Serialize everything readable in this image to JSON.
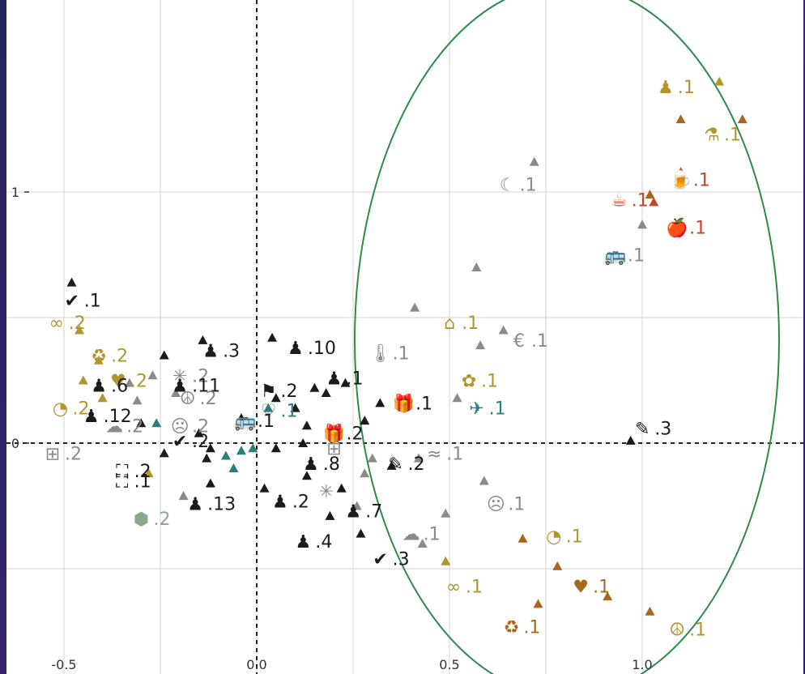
{
  "colors": {
    "black": "#1b1b1b",
    "grey": "#8a8a8a",
    "olive": "#b0962c",
    "brown": "#a8681a",
    "rust": "#c0472c",
    "teal": "#2e7d7a",
    "sage": "#8aa88a",
    "ellipse": "#2f8a4c"
  },
  "chart_data": {
    "type": "scatter",
    "xlim": [
      -0.6,
      1.15
    ],
    "ylim": [
      -0.92,
      1.48
    ],
    "x_ticks": [
      {
        "v": -0.5,
        "label": "-0.5"
      },
      {
        "v": 0.0,
        "label": "0.0"
      },
      {
        "v": 0.5,
        "label": "0.5"
      },
      {
        "v": 1.0,
        "label": "1.0"
      }
    ],
    "y_ticks": [
      {
        "v": 0,
        "label": "0"
      },
      {
        "v": 1,
        "label": "1"
      }
    ],
    "grid": true,
    "reference_lines": {
      "x": 0,
      "y": 0
    },
    "labels": [
      {
        "icon": "chess-pawn-icon",
        "glyph": "♟",
        "text": ".1",
        "x": 1.09,
        "y": 1.42,
        "color": "olive"
      },
      {
        "icon": "flask-icon",
        "glyph": "⚗",
        "text": ".1",
        "x": 1.21,
        "y": 1.23,
        "color": "olive"
      },
      {
        "icon": "beer-icon",
        "glyph": "🍺",
        "text": ".1",
        "x": 1.13,
        "y": 1.05,
        "color": "rust"
      },
      {
        "icon": "cup-icon",
        "glyph": "☕",
        "text": ".1",
        "x": 0.97,
        "y": 0.97,
        "color": "rust"
      },
      {
        "icon": "apple-icon",
        "glyph": "🍎",
        "text": ".1",
        "x": 1.12,
        "y": 0.86,
        "color": "rust"
      },
      {
        "icon": "bus-icon",
        "glyph": "🚌",
        "text": ".1",
        "x": 0.96,
        "y": 0.75,
        "color": "grey"
      },
      {
        "icon": "moon-icon",
        "glyph": "☾",
        "text": ".1",
        "x": 0.68,
        "y": 1.03,
        "color": "grey"
      },
      {
        "icon": "check-icon",
        "glyph": "✔",
        "text": ".1",
        "x": -0.45,
        "y": 0.57,
        "color": "black"
      },
      {
        "icon": "chain-icon",
        "glyph": "∞",
        "text": ".2",
        "x": -0.49,
        "y": 0.48,
        "color": "olive"
      },
      {
        "icon": "house-icon",
        "glyph": "⌂",
        "text": ".1",
        "x": 0.53,
        "y": 0.48,
        "color": "olive"
      },
      {
        "icon": "euro-icon",
        "glyph": "€",
        "text": ".1",
        "x": 0.71,
        "y": 0.41,
        "color": "grey"
      },
      {
        "icon": "recycle-icon",
        "glyph": "♻",
        "text": ".2",
        "x": -0.38,
        "y": 0.35,
        "color": "olive"
      },
      {
        "icon": "chess-pawn-icon",
        "glyph": "♟",
        "text": ".3",
        "x": -0.09,
        "y": 0.37,
        "color": "black"
      },
      {
        "icon": "chess-pawn-icon",
        "glyph": "♟",
        "text": ".10",
        "x": 0.13,
        "y": 0.38,
        "color": "black"
      },
      {
        "icon": "thermometer-icon",
        "glyph": "🌡",
        "text": ".1",
        "x": 0.35,
        "y": 0.36,
        "color": "grey"
      },
      {
        "icon": "chess-pawn-icon",
        "glyph": "♟",
        "text": ".1",
        "x": 0.23,
        "y": 0.26,
        "color": "black"
      },
      {
        "icon": "sunflower-icon",
        "glyph": "✿",
        "text": ".1",
        "x": 0.58,
        "y": 0.25,
        "color": "olive"
      },
      {
        "icon": "heart-icon",
        "glyph": "♥",
        "text": ".2",
        "x": -0.33,
        "y": 0.25,
        "color": "olive"
      },
      {
        "icon": "sparkle-icon",
        "glyph": "✳",
        "text": ".2",
        "x": -0.17,
        "y": 0.27,
        "color": "grey"
      },
      {
        "icon": "chess-pawn-icon",
        "glyph": "♟",
        "text": ".6",
        "x": -0.38,
        "y": 0.23,
        "color": "black"
      },
      {
        "icon": "chess-pawn-icon",
        "glyph": "♟",
        "text": ".11",
        "x": -0.17,
        "y": 0.23,
        "color": "black"
      },
      {
        "icon": "flag-icon",
        "glyph": "⚑",
        "text": ".2",
        "x": 0.06,
        "y": 0.21,
        "color": "black"
      },
      {
        "icon": "peace-icon",
        "glyph": "☮",
        "text": ".2",
        "x": -0.15,
        "y": 0.18,
        "color": "grey"
      },
      {
        "icon": "pie-icon",
        "glyph": "◔",
        "text": ".2",
        "x": -0.48,
        "y": 0.14,
        "color": "olive"
      },
      {
        "icon": "chess-pawn-icon",
        "glyph": "♟",
        "text": ".12",
        "x": -0.4,
        "y": 0.11,
        "color": "black"
      },
      {
        "icon": "gift-icon",
        "glyph": "🎁",
        "text": ".1",
        "x": 0.41,
        "y": 0.16,
        "color": "black"
      },
      {
        "icon": "plane-icon",
        "glyph": "✈",
        "text": ".1",
        "x": 0.6,
        "y": 0.14,
        "color": "teal"
      },
      {
        "icon": "heart-outline-icon",
        "glyph": "♡",
        "text": ".1",
        "x": 0.06,
        "y": 0.13,
        "color": "teal"
      },
      {
        "icon": "bus-icon",
        "glyph": "🚌",
        "text": ".1",
        "x": 0.0,
        "y": 0.09,
        "color": "black"
      },
      {
        "icon": "cloud-icon",
        "glyph": "☁",
        "text": ".2",
        "x": -0.34,
        "y": 0.07,
        "color": "grey"
      },
      {
        "icon": "sad-face-icon",
        "glyph": "☹",
        "text": ".2",
        "x": -0.17,
        "y": 0.07,
        "color": "grey"
      },
      {
        "icon": "gift-icon",
        "glyph": "🎁",
        "text": ".2",
        "x": 0.23,
        "y": 0.04,
        "color": "black"
      },
      {
        "icon": "pen-icon",
        "glyph": "✎",
        "text": ".3",
        "x": 1.03,
        "y": 0.06,
        "color": "black"
      },
      {
        "icon": "jar-icon",
        "glyph": "⊞",
        "text": ".2",
        "x": -0.5,
        "y": -0.04,
        "color": "grey"
      },
      {
        "icon": "check-icon",
        "glyph": "✔",
        "text": ".2",
        "x": -0.17,
        "y": 0.01,
        "color": "black"
      },
      {
        "icon": "jar-icon",
        "glyph": "⊞",
        "text": "",
        "x": 0.23,
        "y": -0.02,
        "color": "grey"
      },
      {
        "icon": "pen-icon",
        "glyph": "✎",
        "text": ".2",
        "x": 0.39,
        "y": -0.08,
        "color": "black"
      },
      {
        "icon": "wave-icon",
        "glyph": "≈",
        "text": ".1",
        "x": 0.49,
        "y": -0.04,
        "color": "grey"
      },
      {
        "icon": "chess-pawn-icon",
        "glyph": "♟",
        "text": ".8",
        "x": 0.17,
        "y": -0.08,
        "color": "black"
      },
      {
        "icon": "network-icon",
        "glyph": "⛶",
        "text": ".2",
        "x": -0.32,
        "y": -0.11,
        "color": "black"
      },
      {
        "icon": "network-icon",
        "glyph": "⛶",
        "text": ".1",
        "x": -0.32,
        "y": -0.15,
        "color": "black"
      },
      {
        "icon": "chess-pawn-icon",
        "glyph": "♟",
        "text": ".13",
        "x": -0.13,
        "y": -0.24,
        "color": "black"
      },
      {
        "icon": "chess-pawn-icon",
        "glyph": "♟",
        "text": ".2",
        "x": 0.09,
        "y": -0.23,
        "color": "black"
      },
      {
        "icon": "sparkle-icon",
        "glyph": "✳",
        "text": "",
        "x": 0.21,
        "y": -0.19,
        "color": "grey"
      },
      {
        "icon": "chess-pawn-icon",
        "glyph": "♟",
        "text": ".7",
        "x": 0.28,
        "y": -0.27,
        "color": "black"
      },
      {
        "icon": "sad-face-icon",
        "glyph": "☹",
        "text": ".1",
        "x": 0.65,
        "y": -0.24,
        "color": "grey"
      },
      {
        "icon": "shirt-icon",
        "glyph": "⬢",
        "text": ".2",
        "x": -0.27,
        "y": -0.3,
        "color": "sage"
      },
      {
        "icon": "chess-pawn-icon",
        "glyph": "♟",
        "text": ".4",
        "x": 0.15,
        "y": -0.39,
        "color": "black"
      },
      {
        "icon": "cloud-icon",
        "glyph": "☁",
        "text": ".1",
        "x": 0.43,
        "y": -0.36,
        "color": "grey"
      },
      {
        "icon": "pie-icon",
        "glyph": "◔",
        "text": ".1",
        "x": 0.8,
        "y": -0.37,
        "color": "olive"
      },
      {
        "icon": "check-icon",
        "glyph": "✔",
        "text": ".3",
        "x": 0.35,
        "y": -0.46,
        "color": "black"
      },
      {
        "icon": "chain-icon",
        "glyph": "∞",
        "text": ".1",
        "x": 0.54,
        "y": -0.57,
        "color": "olive"
      },
      {
        "icon": "heart-icon",
        "glyph": "♥",
        "text": ".1",
        "x": 0.87,
        "y": -0.57,
        "color": "brown"
      },
      {
        "icon": "recycle-icon",
        "glyph": "♻",
        "text": ".1",
        "x": 0.69,
        "y": -0.73,
        "color": "brown"
      },
      {
        "icon": "peace-icon",
        "glyph": "☮",
        "text": ".1",
        "x": 1.12,
        "y": -0.74,
        "color": "olive"
      }
    ],
    "points": [
      {
        "x": 1.2,
        "y": 1.44,
        "c": "olive"
      },
      {
        "x": 1.26,
        "y": 1.29,
        "c": "brown"
      },
      {
        "x": 1.1,
        "y": 1.29,
        "c": "brown"
      },
      {
        "x": 1.1,
        "y": 1.08,
        "c": "rust"
      },
      {
        "x": 1.02,
        "y": 0.99,
        "c": "brown"
      },
      {
        "x": 1.03,
        "y": 0.96,
        "c": "rust"
      },
      {
        "x": 1.0,
        "y": 0.87,
        "c": "grey"
      },
      {
        "x": 0.72,
        "y": 1.12,
        "c": "grey"
      },
      {
        "x": -0.48,
        "y": 0.64,
        "c": "black"
      },
      {
        "x": -0.46,
        "y": 0.45,
        "c": "olive"
      },
      {
        "x": 0.57,
        "y": 0.7,
        "c": "grey"
      },
      {
        "x": 0.41,
        "y": 0.54,
        "c": "grey"
      },
      {
        "x": 0.64,
        "y": 0.45,
        "c": "grey"
      },
      {
        "x": 0.58,
        "y": 0.39,
        "c": "grey"
      },
      {
        "x": -0.24,
        "y": 0.35,
        "c": "black"
      },
      {
        "x": -0.14,
        "y": 0.41,
        "c": "black"
      },
      {
        "x": 0.04,
        "y": 0.42,
        "c": "black"
      },
      {
        "x": -0.41,
        "y": 0.33,
        "c": "olive"
      },
      {
        "x": -0.45,
        "y": 0.25,
        "c": "olive"
      },
      {
        "x": -0.27,
        "y": 0.27,
        "c": "grey"
      },
      {
        "x": -0.33,
        "y": 0.24,
        "c": "grey"
      },
      {
        "x": 0.23,
        "y": 0.24,
        "c": "black"
      },
      {
        "x": 0.18,
        "y": 0.2,
        "c": "black"
      },
      {
        "x": 0.15,
        "y": 0.22,
        "c": "black"
      },
      {
        "x": 0.32,
        "y": 0.16,
        "c": "black"
      },
      {
        "x": 0.52,
        "y": 0.18,
        "c": "grey"
      },
      {
        "x": -0.4,
        "y": 0.18,
        "c": "olive"
      },
      {
        "x": -0.31,
        "y": 0.17,
        "c": "grey"
      },
      {
        "x": -0.21,
        "y": 0.2,
        "c": "grey"
      },
      {
        "x": 0.05,
        "y": 0.18,
        "c": "black"
      },
      {
        "x": 0.1,
        "y": 0.14,
        "c": "black"
      },
      {
        "x": -0.04,
        "y": 0.1,
        "c": "black"
      },
      {
        "x": -0.3,
        "y": 0.08,
        "c": "black"
      },
      {
        "x": -0.26,
        "y": 0.08,
        "c": "teal"
      },
      {
        "x": 0.03,
        "y": 0.14,
        "c": "teal"
      },
      {
        "x": -0.15,
        "y": 0.04,
        "c": "black"
      },
      {
        "x": 0.13,
        "y": 0.07,
        "c": "black"
      },
      {
        "x": 0.28,
        "y": 0.09,
        "c": "black"
      },
      {
        "x": 0.97,
        "y": 0.01,
        "c": "black"
      },
      {
        "x": -0.12,
        "y": -0.02,
        "c": "black"
      },
      {
        "x": -0.24,
        "y": -0.04,
        "c": "black"
      },
      {
        "x": -0.01,
        "y": -0.02,
        "c": "teal"
      },
      {
        "x": -0.04,
        "y": -0.03,
        "c": "teal"
      },
      {
        "x": -0.08,
        "y": -0.05,
        "c": "teal"
      },
      {
        "x": 0.05,
        "y": -0.02,
        "c": "black"
      },
      {
        "x": 0.12,
        "y": 0.0,
        "c": "black"
      },
      {
        "x": 0.2,
        "y": 0.02,
        "c": "black"
      },
      {
        "x": 0.3,
        "y": -0.06,
        "c": "grey"
      },
      {
        "x": 0.35,
        "y": -0.09,
        "c": "black"
      },
      {
        "x": 0.42,
        "y": -0.06,
        "c": "grey"
      },
      {
        "x": -0.06,
        "y": -0.1,
        "c": "teal"
      },
      {
        "x": -0.13,
        "y": -0.06,
        "c": "black"
      },
      {
        "x": -0.28,
        "y": -0.12,
        "c": "olive"
      },
      {
        "x": 0.13,
        "y": -0.13,
        "c": "black"
      },
      {
        "x": 0.28,
        "y": -0.12,
        "c": "grey"
      },
      {
        "x": 0.59,
        "y": -0.15,
        "c": "grey"
      },
      {
        "x": -0.19,
        "y": -0.21,
        "c": "grey"
      },
      {
        "x": -0.12,
        "y": -0.16,
        "c": "black"
      },
      {
        "x": 0.02,
        "y": -0.18,
        "c": "black"
      },
      {
        "x": 0.22,
        "y": -0.18,
        "c": "black"
      },
      {
        "x": 0.26,
        "y": -0.25,
        "c": "grey"
      },
      {
        "x": 0.19,
        "y": -0.29,
        "c": "black"
      },
      {
        "x": 0.49,
        "y": -0.28,
        "c": "grey"
      },
      {
        "x": 0.27,
        "y": -0.36,
        "c": "black"
      },
      {
        "x": 0.43,
        "y": -0.4,
        "c": "grey"
      },
      {
        "x": 0.69,
        "y": -0.38,
        "c": "brown"
      },
      {
        "x": 0.49,
        "y": -0.47,
        "c": "olive"
      },
      {
        "x": 0.78,
        "y": -0.49,
        "c": "brown"
      },
      {
        "x": 0.73,
        "y": -0.64,
        "c": "brown"
      },
      {
        "x": 0.91,
        "y": -0.61,
        "c": "brown"
      },
      {
        "x": 1.02,
        "y": -0.67,
        "c": "brown"
      }
    ]
  }
}
